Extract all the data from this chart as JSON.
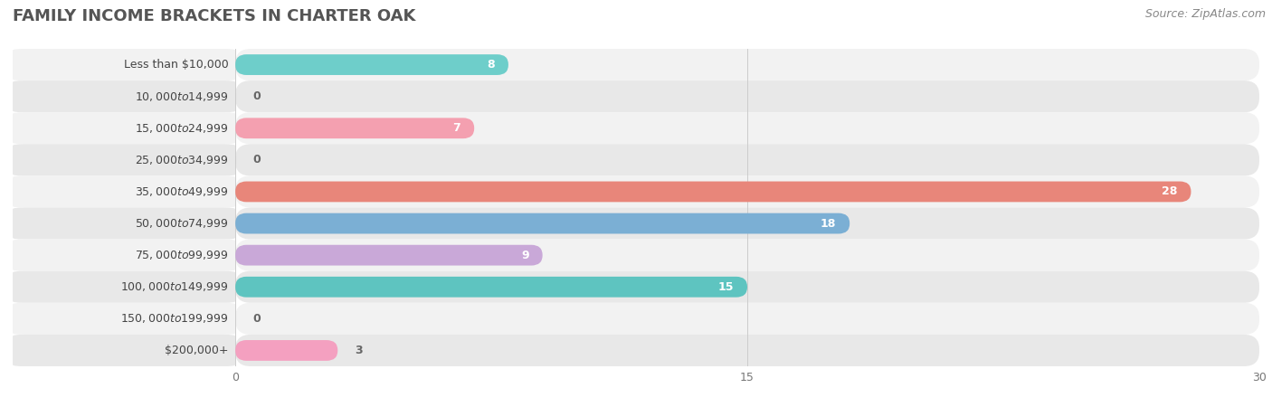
{
  "title": "FAMILY INCOME BRACKETS IN CHARTER OAK",
  "source": "Source: ZipAtlas.com",
  "categories": [
    "Less than $10,000",
    "$10,000 to $14,999",
    "$15,000 to $24,999",
    "$25,000 to $34,999",
    "$35,000 to $49,999",
    "$50,000 to $74,999",
    "$75,000 to $99,999",
    "$100,000 to $149,999",
    "$150,000 to $199,999",
    "$200,000+"
  ],
  "values": [
    8,
    0,
    7,
    0,
    28,
    18,
    9,
    15,
    0,
    3
  ],
  "bar_colors": [
    "#6ECECA",
    "#A8A8D8",
    "#F4A0B0",
    "#F5C98A",
    "#E8867A",
    "#7BAFD4",
    "#C9A8D8",
    "#5EC4C0",
    "#A8A8D8",
    "#F4A0C0"
  ],
  "xlim": [
    0,
    30
  ],
  "xticks": [
    0,
    15,
    30
  ],
  "background_color": "#FFFFFF",
  "title_color": "#555555",
  "title_fontsize": 13,
  "label_fontsize": 9,
  "value_fontsize": 9,
  "source_fontsize": 9,
  "bar_height": 0.65,
  "row_bg_colors": [
    "#F2F2F2",
    "#E8E8E8"
  ]
}
